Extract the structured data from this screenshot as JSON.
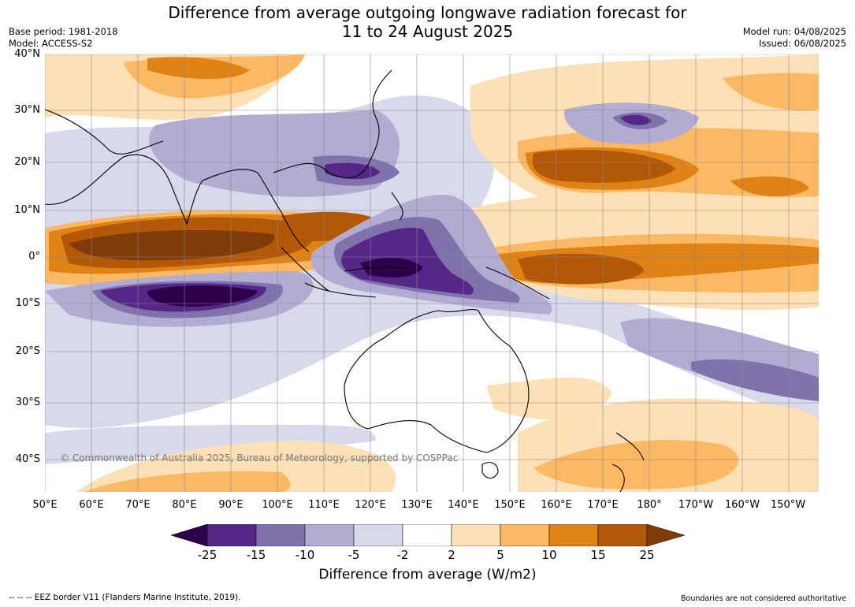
{
  "title_line1": "Difference from average outgoing longwave radiation forecast for",
  "title_line2": "11 to 24 August 2025",
  "meta_left": [
    "Base period: 1981-2018",
    "Model: ACCESS-S2"
  ],
  "meta_right": [
    "Model run: 04/08/2025",
    "Issued: 06/08/2025"
  ],
  "lat_labels": [
    "40°N",
    "30°N",
    "20°N",
    "10°N",
    "0°",
    "10°S",
    "20°S",
    "30°S",
    "40°S"
  ],
  "lon_labels": [
    "50°E",
    "60°E",
    "70°E",
    "80°E",
    "90°E",
    "100°E",
    "110°E",
    "120°E",
    "130°E",
    "140°E",
    "150°E",
    "160°E",
    "170°E",
    "180°",
    "170°W",
    "160°W",
    "150°W"
  ],
  "colorbar": {
    "ticks": [
      "-25",
      "-15",
      "-10",
      "-5",
      "-2",
      "2",
      "5",
      "10",
      "15",
      "25"
    ],
    "colors": [
      "#2d004b",
      "#542788",
      "#8073ac",
      "#b2abd2",
      "#d8daeb",
      "#ffffff",
      "#fee0b6",
      "#fdb863",
      "#e08214",
      "#b35806",
      "#7f3b08"
    ],
    "label": "Difference from average (W/m2)"
  },
  "copyright": "© Commonwealth of Australia 2025, Bureau of Meteorology, supported by COSPPac",
  "footer_left": "-- -- -- EEZ border V11 (Flanders Marine Institute, 2019).",
  "footer_right": "Boundaries are not considered authoritative"
}
